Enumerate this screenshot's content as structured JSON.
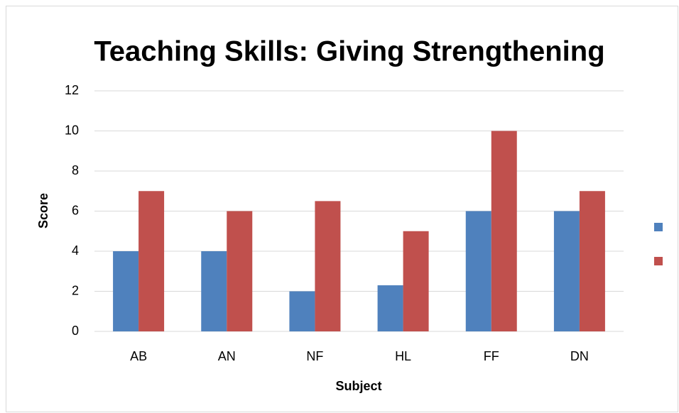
{
  "chart_data": {
    "type": "bar",
    "title": "Teaching Skills: Giving Strengthening",
    "x_label": "Subject",
    "y_label": "Score",
    "categories": [
      "AB",
      "AN",
      "NF",
      "HL",
      "FF",
      "DN"
    ],
    "series": [
      {
        "color": "#4f81bd",
        "values": [
          4,
          4,
          2,
          2.3,
          6,
          6
        ]
      },
      {
        "color": "#c0504d",
        "values": [
          7,
          6,
          6.5,
          5,
          10,
          7
        ]
      }
    ],
    "ylim": [
      0,
      12
    ],
    "yticks": [
      0,
      2,
      4,
      6,
      8,
      10,
      12
    ],
    "grid": true,
    "legend": "right"
  }
}
